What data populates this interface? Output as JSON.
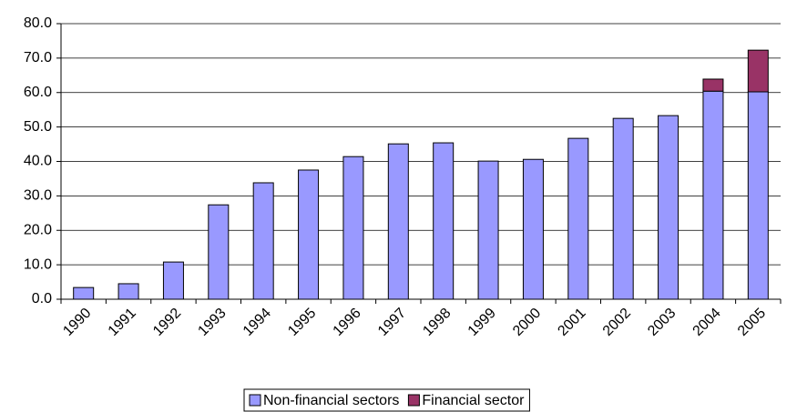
{
  "chart_data": {
    "type": "stacked_bar",
    "categories": [
      "1990",
      "1991",
      "1992",
      "1993",
      "1994",
      "1995",
      "1996",
      "1997",
      "1998",
      "1999",
      "2000",
      "2001",
      "2002",
      "2003",
      "2004",
      "2005"
    ],
    "series": [
      {
        "name": "Non-financial sectors",
        "color": "#9999ff",
        "values": [
          3.4,
          4.5,
          10.8,
          27.4,
          33.8,
          37.5,
          41.4,
          45.1,
          45.4,
          40.1,
          40.6,
          46.7,
          52.5,
          53.3,
          60.4,
          60.2
        ]
      },
      {
        "name": "Financial sector",
        "color": "#993366",
        "values": [
          null,
          null,
          null,
          null,
          null,
          null,
          null,
          null,
          null,
          null,
          null,
          null,
          null,
          null,
          3.5,
          12.1
        ]
      }
    ],
    "ylim": [
      0,
      80
    ],
    "yticks": [
      {
        "value": 0,
        "label": "0.0"
      },
      {
        "value": 10,
        "label": "10.0"
      },
      {
        "value": 20,
        "label": "20.0"
      },
      {
        "value": 30,
        "label": "30.0"
      },
      {
        "value": 40,
        "label": "40.0"
      },
      {
        "value": 50,
        "label": "50.0"
      },
      {
        "value": 60,
        "label": "60.0"
      },
      {
        "value": 70,
        "label": "70.0"
      },
      {
        "value": 80,
        "label": "80.0"
      }
    ],
    "grid": true,
    "legend": "bottom"
  }
}
